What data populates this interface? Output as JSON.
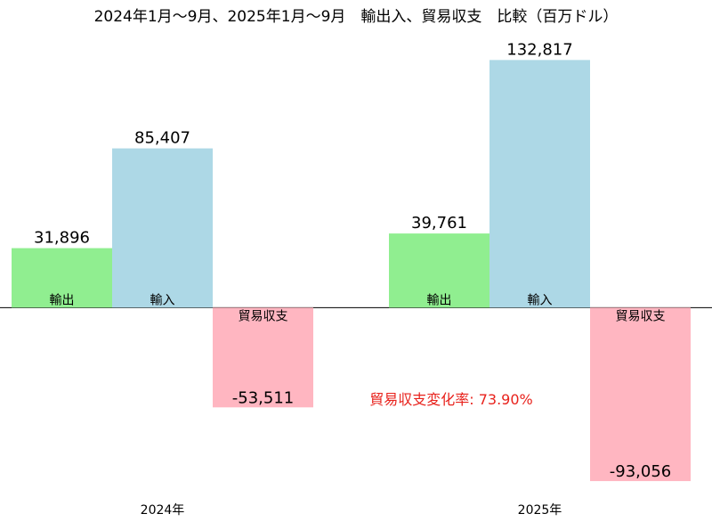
{
  "chart_data": {
    "type": "bar",
    "title": "2024年1月～9月、2025年1月～9月　輸出入、貿易収支　比較（百万ドル）",
    "groups": [
      {
        "label": "2024年",
        "bars": [
          {
            "name": "輸出",
            "value": 31896,
            "value_label": "31,896"
          },
          {
            "name": "輸入",
            "value": 85407,
            "value_label": "85,407"
          },
          {
            "name": "貿易収支",
            "value": -53511,
            "value_label": "-53,511"
          }
        ]
      },
      {
        "label": "2025年",
        "bars": [
          {
            "name": "輸出",
            "value": 39761,
            "value_label": "39,761"
          },
          {
            "name": "輸入",
            "value": 132817,
            "value_label": "132,817"
          },
          {
            "name": "貿易収支",
            "value": -93056,
            "value_label": "-93,056"
          }
        ]
      }
    ],
    "annotation": "貿易収支変化率: 73.90%",
    "colors": {
      "輸出": "#90ee90",
      "輸入": "#add8e6",
      "貿易収支": "#ffb6c1",
      "annotation": "#e8221c"
    },
    "ylim": [
      -115000,
      165000
    ],
    "grid": false,
    "legend": "none"
  }
}
